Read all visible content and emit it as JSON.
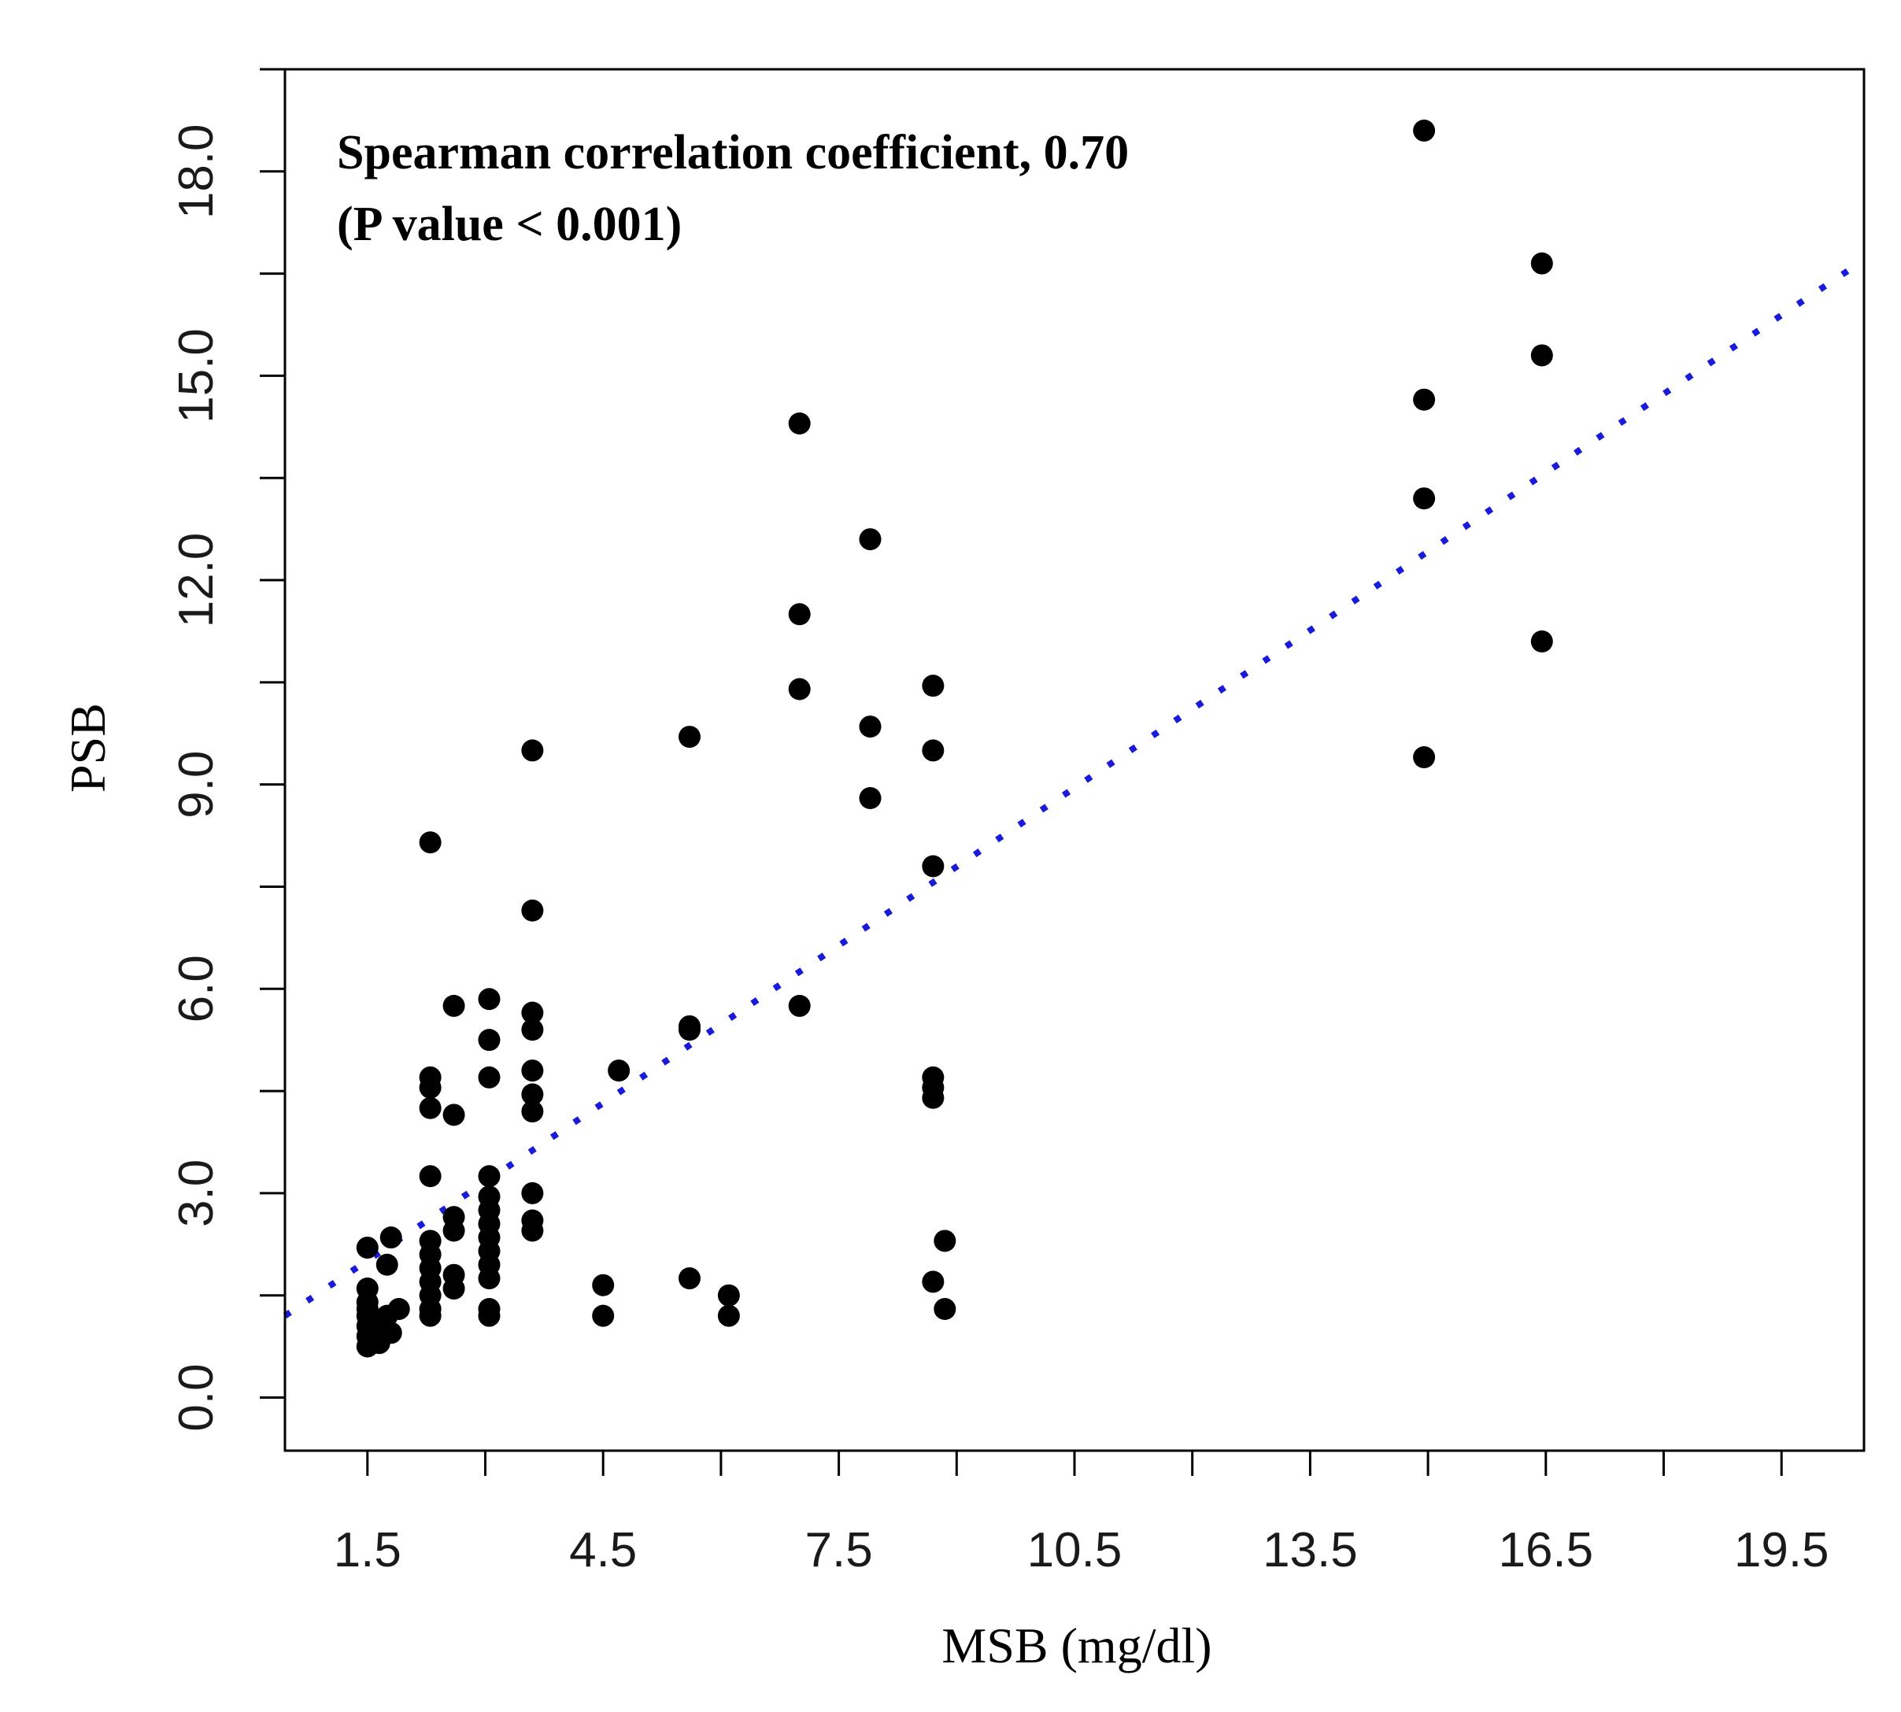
{
  "chart_data": {
    "type": "scatter",
    "title": "",
    "xlabel": "MSB (mg/dl)",
    "ylabel": "PSB",
    "xlim": [
      0.45,
      20.55
    ],
    "ylim": [
      -0.78,
      19.5
    ],
    "x_ticks": [
      1.5,
      3.0,
      4.5,
      6.0,
      7.5,
      9.0,
      10.5,
      12.0,
      13.5,
      15.0,
      16.5,
      18.0,
      19.5
    ],
    "x_tick_labels": [
      "1.5",
      "",
      "4.5",
      "",
      "7.5",
      "",
      "10.5",
      "",
      "13.5",
      "",
      "16.5",
      "",
      "19.5"
    ],
    "y_ticks": [
      0.0,
      1.5,
      3.0,
      4.5,
      6.0,
      7.5,
      9.0,
      10.5,
      12.0,
      13.5,
      15.0,
      16.5,
      18.0,
      19.5
    ],
    "y_tick_labels": [
      "0.0",
      "",
      "3.0",
      "",
      "6.0",
      "",
      "9.0",
      "",
      "12.0",
      "",
      "15.0",
      "",
      "18.0",
      ""
    ],
    "annotation": {
      "line1": "Spearman correlation coefficient, 0.70",
      "line2": "(P value < 0.001)"
    },
    "grid": false,
    "marker_color": "#000000",
    "fit_line": {
      "style": "dotted",
      "color": "#1a1adb",
      "x": [
        0.45,
        20.55
      ],
      "y": [
        1.2,
        16.7
      ]
    },
    "points": [
      [
        1.5,
        2.2
      ],
      [
        1.5,
        1.6
      ],
      [
        1.5,
        1.4
      ],
      [
        1.5,
        1.3
      ],
      [
        1.5,
        1.2
      ],
      [
        1.5,
        1.05
      ],
      [
        1.5,
        0.9
      ],
      [
        1.5,
        0.75
      ],
      [
        1.65,
        0.8
      ],
      [
        1.65,
        1.0
      ],
      [
        1.75,
        1.2
      ],
      [
        1.75,
        1.95
      ],
      [
        1.8,
        2.35
      ],
      [
        1.8,
        0.95
      ],
      [
        1.9,
        1.3
      ],
      [
        2.3,
        8.15
      ],
      [
        2.3,
        4.7
      ],
      [
        2.3,
        4.55
      ],
      [
        2.3,
        4.25
      ],
      [
        2.3,
        3.25
      ],
      [
        2.3,
        2.3
      ],
      [
        2.3,
        2.1
      ],
      [
        2.3,
        1.9
      ],
      [
        2.3,
        1.7
      ],
      [
        2.3,
        1.5
      ],
      [
        2.3,
        1.3
      ],
      [
        2.3,
        1.2
      ],
      [
        2.6,
        5.75
      ],
      [
        2.6,
        4.15
      ],
      [
        2.6,
        2.65
      ],
      [
        2.6,
        2.45
      ],
      [
        2.6,
        1.8
      ],
      [
        2.6,
        1.6
      ],
      [
        3.05,
        5.85
      ],
      [
        3.05,
        5.25
      ],
      [
        3.05,
        4.7
      ],
      [
        3.05,
        3.25
      ],
      [
        3.05,
        2.95
      ],
      [
        3.05,
        2.75
      ],
      [
        3.05,
        2.55
      ],
      [
        3.05,
        2.35
      ],
      [
        3.05,
        2.15
      ],
      [
        3.05,
        1.95
      ],
      [
        3.05,
        1.75
      ],
      [
        3.05,
        1.3
      ],
      [
        3.05,
        1.2
      ],
      [
        3.6,
        9.5
      ],
      [
        3.6,
        7.15
      ],
      [
        3.6,
        5.65
      ],
      [
        3.6,
        5.4
      ],
      [
        3.6,
        4.8
      ],
      [
        3.6,
        4.45
      ],
      [
        3.6,
        4.2
      ],
      [
        3.6,
        3.0
      ],
      [
        3.6,
        2.6
      ],
      [
        3.6,
        2.45
      ],
      [
        4.5,
        1.65
      ],
      [
        4.5,
        1.2
      ],
      [
        4.7,
        4.8
      ],
      [
        5.6,
        9.7
      ],
      [
        5.6,
        5.45
      ],
      [
        5.6,
        5.4
      ],
      [
        5.6,
        1.75
      ],
      [
        6.1,
        1.5
      ],
      [
        6.1,
        1.2
      ],
      [
        7.0,
        14.3
      ],
      [
        7.0,
        11.5
      ],
      [
        7.0,
        10.4
      ],
      [
        7.0,
        5.75
      ],
      [
        7.9,
        12.6
      ],
      [
        7.9,
        9.85
      ],
      [
        7.9,
        8.8
      ],
      [
        8.7,
        10.45
      ],
      [
        8.7,
        9.5
      ],
      [
        8.7,
        7.8
      ],
      [
        8.7,
        4.7
      ],
      [
        8.7,
        4.55
      ],
      [
        8.7,
        4.4
      ],
      [
        8.7,
        1.7
      ],
      [
        8.85,
        2.3
      ],
      [
        8.85,
        1.3
      ],
      [
        14.95,
        18.6
      ],
      [
        14.95,
        14.65
      ],
      [
        14.95,
        13.2
      ],
      [
        14.95,
        9.4
      ],
      [
        16.45,
        16.65
      ],
      [
        16.45,
        15.3
      ],
      [
        16.45,
        11.1
      ]
    ]
  }
}
